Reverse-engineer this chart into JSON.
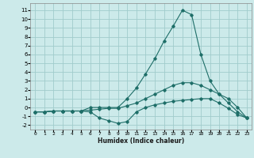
{
  "xlabel": "Humidex (Indice chaleur)",
  "bg_color": "#cceaea",
  "grid_color": "#a0cccc",
  "line_color": "#1e6e68",
  "xlim": [
    -0.5,
    23.5
  ],
  "ylim": [
    -2.5,
    11.8
  ],
  "xticks": [
    0,
    1,
    2,
    3,
    4,
    5,
    6,
    7,
    8,
    9,
    10,
    11,
    12,
    13,
    14,
    15,
    16,
    17,
    18,
    19,
    20,
    21,
    22,
    23
  ],
  "yticks": [
    -2,
    -1,
    0,
    1,
    2,
    3,
    4,
    5,
    6,
    7,
    8,
    9,
    10,
    11
  ],
  "series": [
    {
      "x": [
        0,
        1,
        2,
        3,
        4,
        5,
        6,
        7,
        8,
        9,
        10,
        11,
        12,
        13,
        14,
        15,
        16,
        17,
        18,
        19,
        20,
        21,
        22,
        23
      ],
      "y": [
        -0.5,
        -0.5,
        -0.4,
        -0.4,
        -0.4,
        -0.4,
        -0.5,
        -1.2,
        -1.5,
        -1.8,
        -1.6,
        -0.5,
        0.0,
        0.3,
        0.5,
        0.7,
        0.8,
        0.9,
        1.0,
        1.0,
        0.5,
        -0.1,
        -0.8,
        -1.2
      ]
    },
    {
      "x": [
        0,
        1,
        2,
        3,
        4,
        5,
        6,
        7,
        8,
        9,
        10,
        11,
        12,
        13,
        14,
        15,
        16,
        17,
        18,
        19,
        20,
        21,
        22,
        23
      ],
      "y": [
        -0.5,
        -0.5,
        -0.4,
        -0.4,
        -0.4,
        -0.4,
        -0.3,
        -0.2,
        -0.1,
        -0.1,
        0.2,
        0.5,
        1.0,
        1.5,
        2.0,
        2.5,
        2.8,
        2.8,
        2.5,
        2.0,
        1.5,
        0.5,
        -0.5,
        -1.2
      ]
    },
    {
      "x": [
        0,
        1,
        2,
        3,
        4,
        5,
        6,
        7,
        8,
        9,
        10,
        11,
        12,
        13,
        14,
        15,
        16,
        17,
        18,
        19,
        20,
        21,
        22,
        23
      ],
      "y": [
        -0.5,
        -0.5,
        -0.4,
        -0.4,
        -0.4,
        -0.4,
        0.0,
        0.0,
        0.0,
        0.0,
        1.0,
        2.2,
        3.8,
        5.5,
        7.5,
        9.2,
        11.0,
        10.5,
        6.0,
        3.0,
        1.5,
        1.0,
        0.0,
        -1.2
      ]
    }
  ]
}
